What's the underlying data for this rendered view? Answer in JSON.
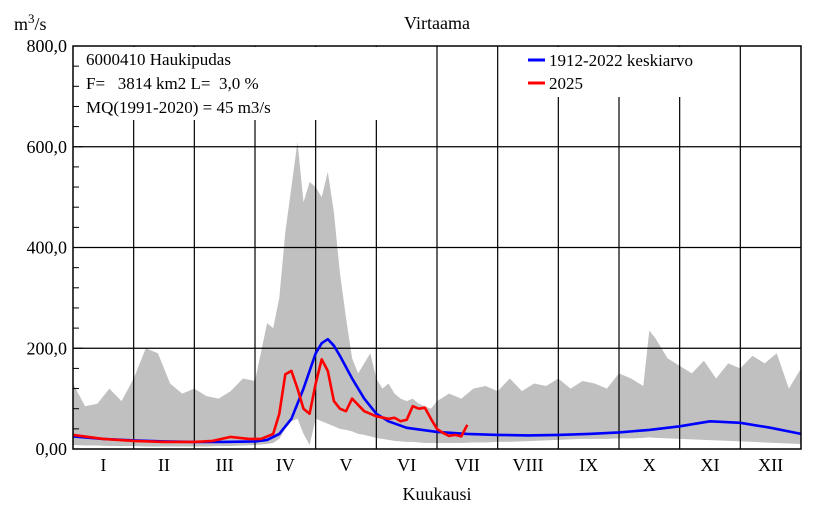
{
  "chart_data": {
    "type": "line",
    "title": "Virtaama",
    "ylabel": "m3/s",
    "xlabel": "Kuukausi",
    "ylim": [
      0,
      800
    ],
    "yticks": [
      0,
      200,
      400,
      600,
      800
    ],
    "ytick_labels": [
      "0,00",
      "200,0",
      "400,0",
      "600,0",
      "800,0"
    ],
    "months": [
      "I",
      "II",
      "III",
      "IV",
      "V",
      "VI",
      "VII",
      "VIII",
      "IX",
      "X",
      "XI",
      "XII"
    ],
    "xlim": [
      0,
      12
    ],
    "info": {
      "station": "6000410 Haukipudas",
      "area": "F=   3814 km2 L=  3,0 %",
      "mq": "MQ(1991-2020) = 45 m3/s"
    },
    "legend_position": "top-right",
    "colors": {
      "range_band": "#c0c0c0",
      "mean_series": "#0000ff",
      "current_series": "#ff0000"
    },
    "range_band": {
      "x": [
        0.0,
        0.2,
        0.4,
        0.6,
        0.8,
        1.0,
        1.2,
        1.4,
        1.6,
        1.8,
        2.0,
        2.2,
        2.4,
        2.6,
        2.8,
        3.0,
        3.2,
        3.3,
        3.4,
        3.5,
        3.6,
        3.7,
        3.8,
        3.9,
        4.0,
        4.1,
        4.2,
        4.3,
        4.4,
        4.5,
        4.6,
        4.7,
        4.8,
        4.9,
        5.0,
        5.1,
        5.2,
        5.3,
        5.4,
        5.5,
        5.6,
        5.7,
        5.8,
        5.9,
        6.0,
        6.2,
        6.4,
        6.6,
        6.8,
        7.0,
        7.2,
        7.4,
        7.6,
        7.8,
        8.0,
        8.2,
        8.4,
        8.6,
        8.8,
        9.0,
        9.2,
        9.4,
        9.5,
        9.6,
        9.8,
        10.0,
        10.2,
        10.4,
        10.6,
        10.8,
        11.0,
        11.2,
        11.4,
        11.6,
        11.8,
        12.0
      ],
      "max": [
        130,
        85,
        90,
        120,
        95,
        140,
        200,
        190,
        130,
        110,
        120,
        105,
        100,
        115,
        140,
        135,
        250,
        240,
        300,
        430,
        520,
        610,
        490,
        530,
        520,
        500,
        550,
        470,
        350,
        260,
        180,
        150,
        170,
        190,
        140,
        120,
        130,
        110,
        100,
        95,
        100,
        90,
        85,
        80,
        95,
        110,
        100,
        120,
        125,
        115,
        140,
        115,
        130,
        125,
        140,
        120,
        135,
        130,
        120,
        150,
        140,
        125,
        235,
        220,
        180,
        165,
        150,
        175,
        140,
        170,
        160,
        185,
        170,
        190,
        120,
        160
      ],
      "min": [
        8,
        7,
        7,
        6,
        6,
        6,
        5,
        5,
        5,
        5,
        5,
        5,
        6,
        6,
        7,
        8,
        10,
        12,
        20,
        40,
        55,
        60,
        30,
        8,
        60,
        55,
        50,
        45,
        40,
        38,
        35,
        30,
        28,
        25,
        22,
        20,
        18,
        16,
        15,
        14,
        14,
        13,
        12,
        12,
        12,
        12,
        12,
        13,
        13,
        14,
        14,
        15,
        16,
        17,
        18,
        19,
        20,
        20,
        20,
        21,
        21,
        22,
        23,
        22,
        21,
        20,
        19,
        18,
        17,
        16,
        15,
        14,
        13,
        12,
        11,
        10
      ]
    },
    "series": [
      {
        "name": "1912-2022 keskiarvo",
        "x": [
          0.0,
          0.5,
          1.0,
          1.5,
          2.0,
          2.5,
          3.0,
          3.2,
          3.4,
          3.6,
          3.8,
          4.0,
          4.1,
          4.2,
          4.3,
          4.4,
          4.6,
          4.8,
          5.0,
          5.2,
          5.5,
          6.0,
          6.5,
          7.0,
          7.5,
          8.0,
          8.5,
          9.0,
          9.5,
          10.0,
          10.5,
          11.0,
          11.5,
          12.0
        ],
        "y": [
          25,
          20,
          17,
          15,
          14,
          14,
          15,
          18,
          30,
          60,
          120,
          190,
          210,
          218,
          205,
          185,
          140,
          100,
          70,
          55,
          42,
          34,
          30,
          28,
          27,
          28,
          30,
          33,
          38,
          45,
          55,
          52,
          42,
          30
        ]
      },
      {
        "name": "2025",
        "x": [
          0.0,
          0.5,
          1.0,
          1.5,
          1.8,
          2.0,
          2.3,
          2.6,
          2.9,
          3.1,
          3.3,
          3.4,
          3.5,
          3.6,
          3.7,
          3.8,
          3.9,
          4.0,
          4.1,
          4.2,
          4.3,
          4.4,
          4.5,
          4.6,
          4.8,
          5.0,
          5.2,
          5.3,
          5.4,
          5.5,
          5.6,
          5.7,
          5.8,
          5.9,
          6.0,
          6.1,
          6.2,
          6.3,
          6.4,
          6.5
        ],
        "y": [
          28,
          20,
          16,
          14,
          14,
          14,
          16,
          24,
          20,
          20,
          30,
          70,
          148,
          155,
          120,
          80,
          70,
          130,
          178,
          155,
          95,
          80,
          75,
          100,
          75,
          65,
          60,
          62,
          55,
          58,
          85,
          80,
          82,
          60,
          40,
          32,
          26,
          28,
          25,
          48
        ]
      }
    ]
  }
}
